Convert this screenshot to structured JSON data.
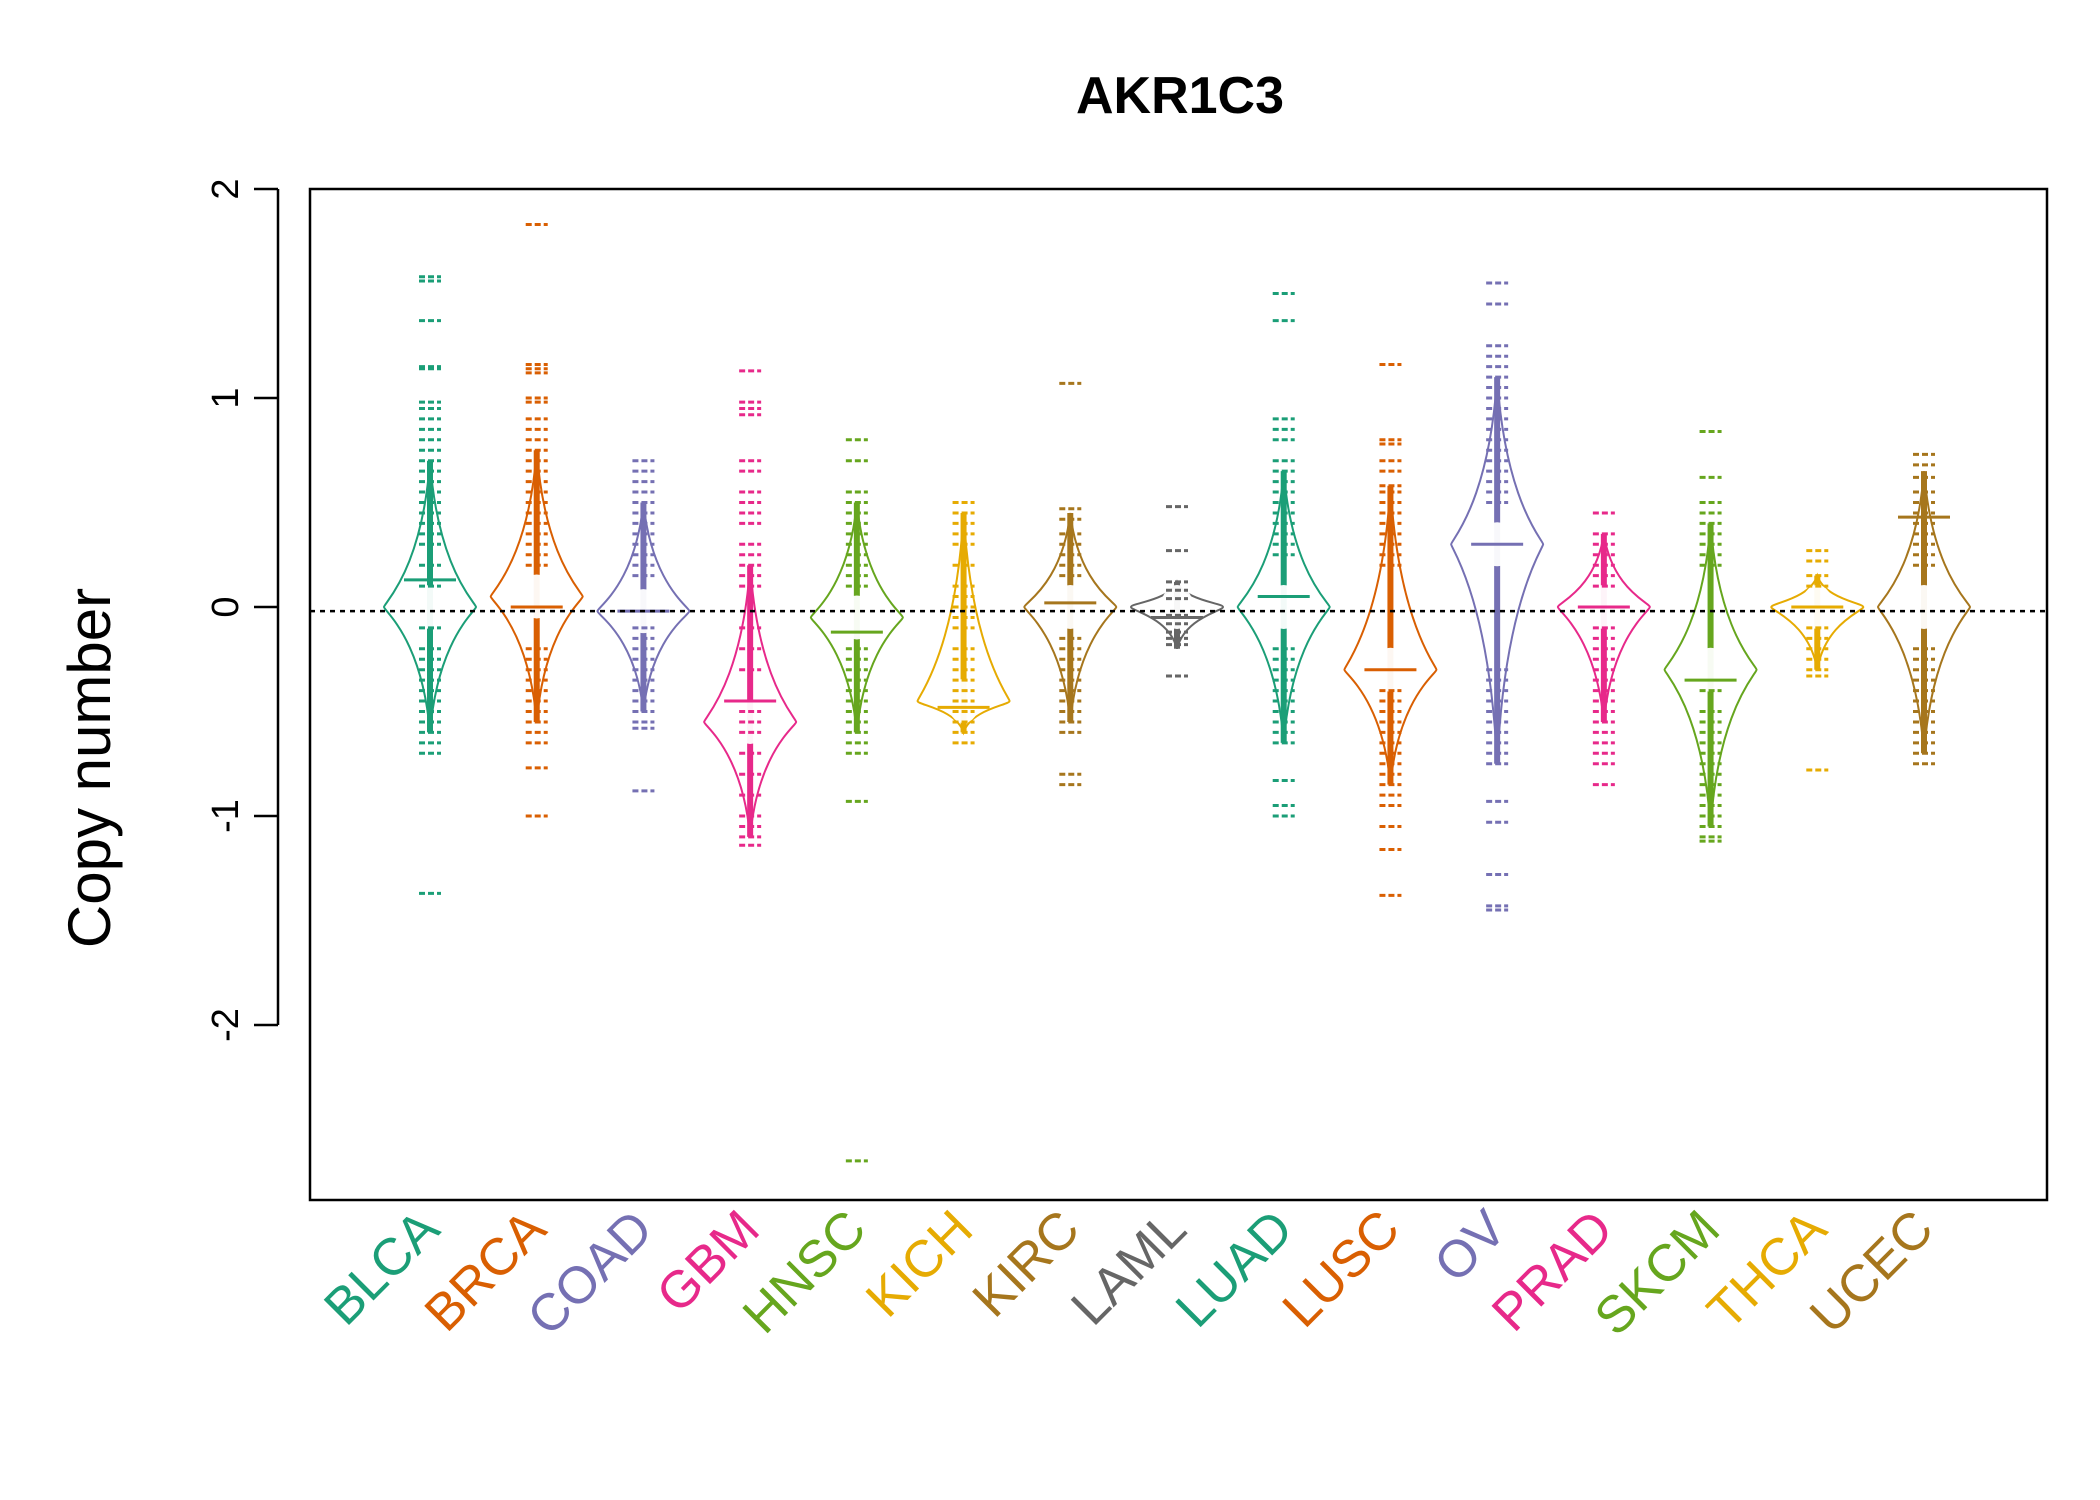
{
  "chart_data": {
    "type": "beanplot",
    "title": "AKR1C3",
    "ylabel": "Copy number",
    "xlabel": "",
    "ylim": [
      -2.8,
      2.08
    ],
    "yticks": [
      -2,
      -1,
      0,
      1,
      2
    ],
    "reference_line": -0.02,
    "grid": false,
    "legend": "none",
    "series": [
      {
        "category": "BLCA",
        "color": "#1B9E77",
        "median": 0.13,
        "peak": 0.0,
        "bulk": [
          -0.6,
          0.7
        ],
        "points": [
          1.58,
          1.56,
          1.37,
          1.15,
          1.14,
          0.98,
          0.95,
          0.9,
          0.85,
          0.8,
          0.75,
          0.7,
          0.65,
          0.6,
          0.55,
          0.5,
          0.45,
          0.4,
          0.35,
          0.3,
          0.2,
          0.1,
          -0.1,
          -0.2,
          -0.25,
          -0.3,
          -0.35,
          -0.4,
          -0.45,
          -0.5,
          -0.55,
          -0.6,
          -0.65,
          -0.7,
          -1.37
        ]
      },
      {
        "category": "BRCA",
        "color": "#D95F02",
        "median": 0.0,
        "peak": 0.05,
        "bulk": [
          -0.55,
          0.75
        ],
        "points": [
          1.83,
          1.16,
          1.14,
          1.12,
          1.0,
          0.98,
          0.9,
          0.85,
          0.8,
          0.75,
          0.7,
          0.65,
          0.6,
          0.55,
          0.5,
          0.45,
          0.4,
          0.35,
          0.3,
          0.25,
          0.2,
          -0.2,
          -0.25,
          -0.3,
          -0.35,
          -0.4,
          -0.45,
          -0.5,
          -0.55,
          -0.6,
          -0.65,
          -0.77,
          -1.0
        ]
      },
      {
        "category": "COAD",
        "color": "#7570B3",
        "median": -0.02,
        "peak": -0.02,
        "bulk": [
          -0.5,
          0.5
        ],
        "points": [
          0.7,
          0.65,
          0.6,
          0.55,
          0.5,
          0.45,
          0.4,
          0.35,
          0.3,
          0.25,
          0.2,
          0.15,
          -0.1,
          -0.15,
          -0.2,
          -0.25,
          -0.3,
          -0.35,
          -0.4,
          -0.45,
          -0.5,
          -0.55,
          -0.58,
          -0.88
        ]
      },
      {
        "category": "GBM",
        "color": "#E7298A",
        "median": -0.45,
        "peak": -0.55,
        "bulk": [
          -1.1,
          0.2
        ],
        "points": [
          1.13,
          0.98,
          0.95,
          0.92,
          0.7,
          0.65,
          0.55,
          0.5,
          0.45,
          0.4,
          0.3,
          0.25,
          0.2,
          0.15,
          0.1,
          -0.1,
          -0.2,
          -0.3,
          -0.5,
          -0.55,
          -0.6,
          -0.7,
          -0.8,
          -0.9,
          -1.0,
          -1.05,
          -1.1,
          -1.14
        ]
      },
      {
        "category": "HNSC",
        "color": "#66A61E",
        "median": -0.12,
        "peak": -0.05,
        "bulk": [
          -0.6,
          0.5
        ],
        "points": [
          0.8,
          0.7,
          0.55,
          0.5,
          0.45,
          0.4,
          0.35,
          0.3,
          0.25,
          0.2,
          0.15,
          0.1,
          -0.2,
          -0.25,
          -0.3,
          -0.35,
          -0.4,
          -0.45,
          -0.5,
          -0.55,
          -0.6,
          -0.65,
          -0.7,
          -0.93,
          -2.65
        ]
      },
      {
        "category": "KICH",
        "color": "#E6AB02",
        "median": -0.48,
        "peak": -0.45,
        "bulk": [
          -0.6,
          0.45
        ],
        "points": [
          0.5,
          0.45,
          0.4,
          0.35,
          0.3,
          0.2,
          0.1,
          0.05,
          0.0,
          -0.05,
          -0.1,
          -0.2,
          -0.25,
          -0.3,
          -0.35,
          -0.4,
          -0.45,
          -0.5,
          -0.55,
          -0.6,
          -0.65
        ]
      },
      {
        "category": "KIRC",
        "color": "#A6761D",
        "median": 0.02,
        "peak": 0.0,
        "bulk": [
          -0.55,
          0.45
        ],
        "points": [
          1.07,
          0.47,
          0.42,
          0.35,
          0.3,
          0.25,
          0.2,
          0.15,
          -0.15,
          -0.2,
          -0.25,
          -0.3,
          -0.35,
          -0.4,
          -0.45,
          -0.5,
          -0.55,
          -0.6,
          -0.8,
          -0.85
        ]
      },
      {
        "category": "LAML",
        "color": "#666666",
        "median": -0.05,
        "peak": 0.0,
        "bulk": [
          -0.2,
          0.12
        ],
        "points": [
          0.48,
          0.27,
          0.12,
          0.08,
          0.04,
          -0.04,
          -0.08,
          -0.12,
          -0.15,
          -0.18,
          -0.33
        ]
      },
      {
        "category": "LUAD",
        "color": "#1B9E77",
        "median": 0.05,
        "peak": 0.0,
        "bulk": [
          -0.65,
          0.65
        ],
        "points": [
          1.5,
          1.37,
          0.9,
          0.85,
          0.8,
          0.7,
          0.65,
          0.6,
          0.55,
          0.5,
          0.45,
          0.4,
          0.35,
          0.3,
          0.25,
          -0.2,
          -0.25,
          -0.3,
          -0.35,
          -0.4,
          -0.45,
          -0.5,
          -0.55,
          -0.6,
          -0.65,
          -0.83,
          -0.95,
          -1.0
        ]
      },
      {
        "category": "LUSC",
        "color": "#D95F02",
        "median": -0.3,
        "peak": -0.3,
        "bulk": [
          -0.85,
          0.58
        ],
        "points": [
          1.16,
          0.8,
          0.78,
          0.7,
          0.65,
          0.58,
          0.55,
          0.5,
          0.45,
          0.4,
          0.35,
          0.3,
          0.25,
          0.2,
          -0.4,
          -0.45,
          -0.5,
          -0.55,
          -0.6,
          -0.65,
          -0.7,
          -0.75,
          -0.8,
          -0.85,
          -0.9,
          -0.95,
          -1.05,
          -1.16,
          -1.38
        ]
      },
      {
        "category": "OV",
        "color": "#7570B3",
        "median": 0.3,
        "peak": 0.3,
        "bulk": [
          -0.75,
          1.1
        ],
        "points": [
          1.55,
          1.45,
          1.25,
          1.2,
          1.15,
          1.1,
          1.05,
          1.0,
          0.95,
          0.9,
          0.85,
          0.8,
          0.75,
          0.7,
          0.65,
          0.6,
          0.55,
          0.5,
          -0.3,
          -0.35,
          -0.4,
          -0.45,
          -0.5,
          -0.55,
          -0.6,
          -0.65,
          -0.7,
          -0.75,
          -0.93,
          -1.03,
          -1.28,
          -1.43,
          -1.45
        ]
      },
      {
        "category": "PRAD",
        "color": "#E7298A",
        "median": 0.0,
        "peak": 0.0,
        "bulk": [
          -0.55,
          0.35
        ],
        "points": [
          0.45,
          0.35,
          0.3,
          0.25,
          0.2,
          0.15,
          0.1,
          -0.1,
          -0.15,
          -0.2,
          -0.25,
          -0.3,
          -0.35,
          -0.4,
          -0.45,
          -0.5,
          -0.55,
          -0.6,
          -0.65,
          -0.7,
          -0.75,
          -0.85
        ]
      },
      {
        "category": "SKCM",
        "color": "#66A61E",
        "median": -0.35,
        "peak": -0.3,
        "bulk": [
          -1.05,
          0.4
        ],
        "points": [
          0.84,
          0.62,
          0.5,
          0.45,
          0.4,
          0.35,
          0.3,
          0.25,
          0.2,
          -0.4,
          -0.5,
          -0.55,
          -0.6,
          -0.65,
          -0.7,
          -0.75,
          -0.8,
          -0.85,
          -0.9,
          -0.95,
          -1.0,
          -1.05,
          -1.1,
          -1.12
        ]
      },
      {
        "category": "THCA",
        "color": "#E6AB02",
        "median": 0.0,
        "peak": 0.0,
        "bulk": [
          -0.3,
          0.15
        ],
        "points": [
          0.27,
          0.22,
          0.15,
          0.1,
          -0.1,
          -0.15,
          -0.2,
          -0.25,
          -0.3,
          -0.33,
          -0.78
        ]
      },
      {
        "category": "UCEC",
        "color": "#A6761D",
        "median": 0.43,
        "peak": 0.0,
        "bulk": [
          -0.7,
          0.65
        ],
        "points": [
          0.73,
          0.68,
          0.62,
          0.55,
          0.5,
          0.45,
          0.4,
          0.35,
          0.3,
          0.25,
          0.2,
          -0.2,
          -0.25,
          -0.3,
          -0.35,
          -0.4,
          -0.45,
          -0.5,
          -0.55,
          -0.6,
          -0.65,
          -0.7,
          -0.75
        ]
      }
    ]
  }
}
